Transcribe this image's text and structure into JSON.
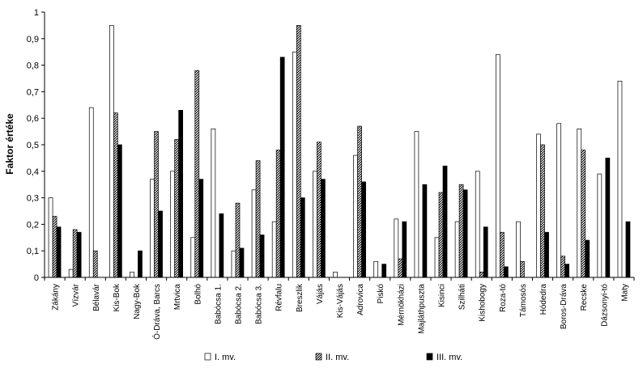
{
  "chart_data": {
    "type": "bar",
    "title": "",
    "xlabel": "",
    "ylabel": "Faktor értéke",
    "ylim": [
      0,
      1
    ],
    "yticks": [
      "0",
      "0,1",
      "0,2",
      "0,3",
      "0,4",
      "0,5",
      "0,6",
      "0,7",
      "0,8",
      "0,9",
      "1"
    ],
    "grid": false,
    "legend_position": "bottom",
    "categories": [
      "Zákány",
      "Vízvár",
      "Bélavár",
      "Kis-Bok",
      "Nagy-Bok",
      "Ó-Dráva, Barcs",
      "Mrtvica",
      "Bolhó",
      "Babócsa 1.",
      "Babócsa 2.",
      "Babócsa 3.",
      "Révfalu",
      "Breszlik",
      "Vájás",
      "Kis-Vájás",
      "Adrovica",
      "Piskó",
      "Mérnökházi",
      "Majláthpuszta",
      "Kisinci",
      "Szilháti",
      "Kishobogy",
      "Roza-tó",
      "Támosós",
      "Hódedra",
      "Boros-Dráva",
      "Recske",
      "Dázsonyi-tó",
      "Maty"
    ],
    "series": [
      {
        "name": "I. mv.",
        "color": "#ffffff",
        "pattern": "white",
        "values": [
          0.3,
          0.03,
          0.64,
          0.95,
          0.02,
          0.37,
          0.4,
          0.15,
          0.56,
          0.1,
          0.33,
          0.21,
          0.85,
          0.4,
          0.02,
          0.46,
          0.06,
          0.22,
          0.55,
          0.15,
          0.21,
          0.4,
          0.84,
          0.21,
          0.54,
          0.58,
          0.56,
          0.39,
          0.74
        ]
      },
      {
        "name": "II. mv.",
        "color": "#808080",
        "pattern": "hatched",
        "values": [
          0.23,
          0.18,
          0.1,
          0.62,
          0.0,
          0.55,
          0.52,
          0.78,
          0.0,
          0.28,
          0.44,
          0.48,
          0.95,
          0.51,
          0.0,
          0.57,
          0.0,
          0.07,
          0.0,
          0.32,
          0.35,
          0.02,
          0.17,
          0.06,
          0.5,
          0.08,
          0.48,
          0.0,
          0.0
        ]
      },
      {
        "name": "III. mv.",
        "color": "#000000",
        "pattern": "black",
        "values": [
          0.19,
          0.17,
          0.0,
          0.5,
          0.1,
          0.25,
          0.63,
          0.37,
          0.24,
          0.11,
          0.16,
          0.83,
          0.3,
          0.37,
          0.0,
          0.36,
          0.05,
          0.21,
          0.35,
          0.42,
          0.33,
          0.19,
          0.04,
          0.0,
          0.17,
          0.05,
          0.14,
          0.45,
          0.21
        ]
      }
    ]
  }
}
